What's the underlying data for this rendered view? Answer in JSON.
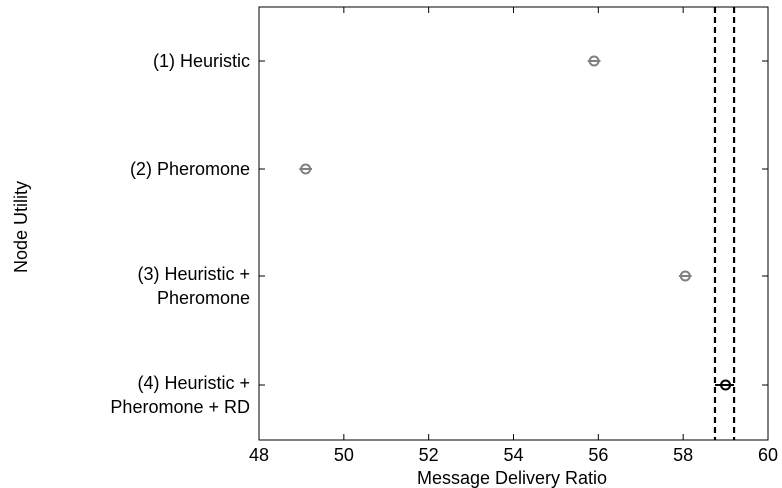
{
  "chart_data": {
    "type": "scatter",
    "orientation": "horizontal",
    "xlabel": "Message Delivery Ratio",
    "ylabel": "Node Utility",
    "xlim": [
      48,
      60
    ],
    "xticks": [
      "48",
      "50",
      "52",
      "54",
      "56",
      "58",
      "60"
    ],
    "grid": false,
    "categories": [
      [
        "(1) Heuristic"
      ],
      [
        "(2) Pheromone"
      ],
      [
        "(3) Heuristic +",
        "Pheromone"
      ],
      [
        "(4) Heuristic +",
        "Pheromone + RD"
      ]
    ],
    "points": [
      {
        "mean": 55.9,
        "ci": [
          55.75,
          56.05
        ],
        "color": "#808080"
      },
      {
        "mean": 49.1,
        "ci": [
          48.95,
          49.25
        ],
        "color": "#808080"
      },
      {
        "mean": 58.05,
        "ci": [
          57.9,
          58.2
        ],
        "color": "#808080"
      },
      {
        "mean": 59.0,
        "ci": [
          58.75,
          59.2
        ],
        "color": "#000000"
      }
    ],
    "reference_lines": {
      "values": [
        58.75,
        59.2
      ],
      "style": "dashed",
      "color": "#000000"
    }
  }
}
